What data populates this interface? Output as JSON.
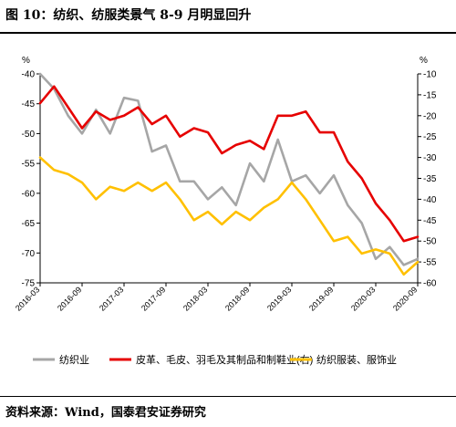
{
  "header": {
    "title": "图 10：纺织、纺服类景气 8-9 月明显回升"
  },
  "footer": {
    "source": "资料来源：Wind，国泰君安证券研究"
  },
  "chart_data": {
    "type": "line",
    "title": "",
    "x_categories": [
      "2016-03",
      "2016-09",
      "2017-03",
      "2017-09",
      "2018-03",
      "2018-09",
      "2019-03",
      "2019-09",
      "2020-03",
      "2020-09"
    ],
    "y_left": {
      "unit": "%",
      "min": -75,
      "max": -40,
      "ticks": [
        -40,
        -45,
        -50,
        -55,
        -60,
        -65,
        -70,
        -75
      ]
    },
    "y_right": {
      "unit": "%",
      "min": -60,
      "max": -10,
      "ticks": [
        -10,
        -15,
        -20,
        -25,
        -30,
        -35,
        -40,
        -45,
        -50,
        -55,
        -60
      ]
    },
    "legend_position": "bottom",
    "colors": {
      "textile": "#A6A6A6",
      "leather": "#E60000",
      "apparel": "#FFC000"
    },
    "series": [
      {
        "key": "textile",
        "name": "纺织业",
        "axis": "left",
        "x": [
          "2016-03",
          "2016-05",
          "2016-07",
          "2016-09",
          "2016-11",
          "2017-01",
          "2017-03",
          "2017-05",
          "2017-07",
          "2017-09",
          "2017-11",
          "2018-01",
          "2018-03",
          "2018-05",
          "2018-07",
          "2018-09",
          "2018-11",
          "2019-01",
          "2019-03",
          "2019-05",
          "2019-07",
          "2019-09",
          "2019-11",
          "2020-01",
          "2020-03",
          "2020-05",
          "2020-07",
          "2020-09"
        ],
        "values": [
          -40,
          -42.5,
          -47,
          -50,
          -46,
          -50,
          -44,
          -44.5,
          -53,
          -52,
          -58,
          -58,
          -61,
          -59,
          -62,
          -55,
          -58,
          -51,
          -58,
          -57,
          -60,
          -57,
          -62,
          -65,
          -71,
          -69,
          -72,
          -71
        ]
      },
      {
        "key": "leather",
        "name": "皮革、毛皮、羽毛及其制品和制鞋业(右)",
        "axis": "right",
        "x": [
          "2016-03",
          "2016-05",
          "2016-07",
          "2016-09",
          "2016-11",
          "2017-01",
          "2017-03",
          "2017-05",
          "2017-07",
          "2017-09",
          "2017-11",
          "2018-01",
          "2018-03",
          "2018-05",
          "2018-07",
          "2018-09",
          "2018-11",
          "2019-01",
          "2019-03",
          "2019-05",
          "2019-07",
          "2019-09",
          "2019-11",
          "2020-01",
          "2020-03",
          "2020-05",
          "2020-07",
          "2020-09"
        ],
        "values": [
          -17,
          -13,
          -18,
          -23,
          -19,
          -21,
          -20,
          -18,
          -22,
          -20,
          -25,
          -23,
          -24,
          -29,
          -27,
          -26,
          -28,
          -20,
          -20,
          -19,
          -24,
          -24,
          -31,
          -35,
          -41,
          -45,
          -50,
          -49
        ]
      },
      {
        "key": "apparel",
        "name": "纺织服装、服饰业",
        "axis": "right",
        "x": [
          "2016-03",
          "2016-05",
          "2016-07",
          "2016-09",
          "2016-11",
          "2017-01",
          "2017-03",
          "2017-05",
          "2017-07",
          "2017-09",
          "2017-11",
          "2018-01",
          "2018-03",
          "2018-05",
          "2018-07",
          "2018-09",
          "2018-11",
          "2019-01",
          "2019-03",
          "2019-05",
          "2019-07",
          "2019-09",
          "2019-11",
          "2020-01",
          "2020-03",
          "2020-05",
          "2020-07",
          "2020-09"
        ],
        "values": [
          -30,
          -33,
          -34,
          -36,
          -40,
          -37,
          -38,
          -36,
          -38,
          -36,
          -40,
          -45,
          -43,
          -46,
          -43,
          -45,
          -42,
          -40,
          -36,
          -40,
          -45,
          -50,
          -49,
          -53,
          -52,
          -53,
          -58,
          -55
        ]
      }
    ]
  }
}
